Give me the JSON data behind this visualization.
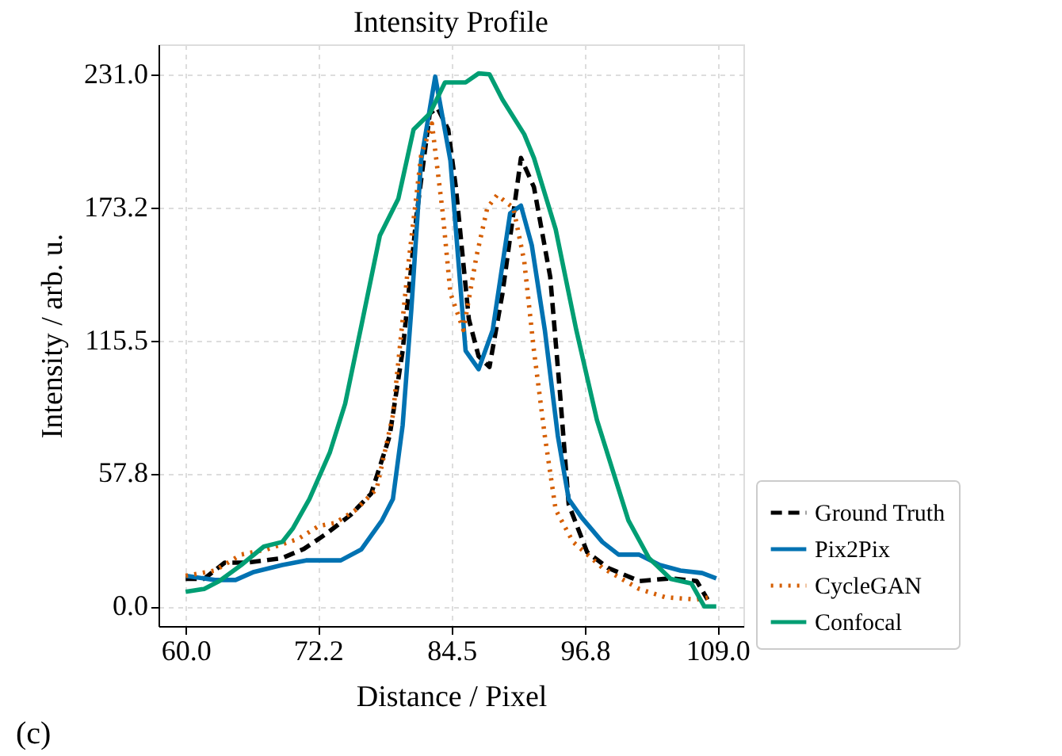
{
  "chart_data": {
    "type": "line",
    "title": "Intensity Profile",
    "xlabel": "Distance / Pixel",
    "ylabel": "Intensity / arb. u.",
    "xlim": [
      57.5,
      111.4
    ],
    "ylim": [
      -8.5,
      244
    ],
    "xticks": [
      {
        "value": 60,
        "label": "60.0"
      },
      {
        "value": 72.2,
        "label": "72.2"
      },
      {
        "value": 84.5,
        "label": "84.5"
      },
      {
        "value": 96.8,
        "label": "96.8"
      },
      {
        "value": 109,
        "label": "109.0"
      }
    ],
    "yticks": [
      {
        "value": 0,
        "label": "0.0"
      },
      {
        "value": 57.8,
        "label": "57.8"
      },
      {
        "value": 115.5,
        "label": "115.5"
      },
      {
        "value": 173.2,
        "label": "173.2"
      },
      {
        "value": 231,
        "label": "231.0"
      }
    ],
    "grid": true,
    "legend": "bottom right",
    "marker": "none",
    "annotations": [
      "(c)"
    ],
    "series": [
      {
        "name": "Ground Truth",
        "color": "#000000",
        "line_style": "dashed",
        "x": [
          60,
          61.7,
          63.6,
          65.6,
          68.9,
          70.9,
          73,
          75.2,
          77.1,
          78.8,
          80,
          81.3,
          82.5,
          83.2,
          84.2,
          84.9,
          86.1,
          87,
          88,
          89.2,
          90.9,
          92.1,
          93.6,
          94.5,
          95.3,
          97,
          98.9,
          101.8,
          104.7,
          107.1,
          108.1
        ],
        "values": [
          12,
          12,
          19,
          19,
          21,
          25,
          31.7,
          39.7,
          49,
          74,
          111,
          170.6,
          214,
          216.5,
          207,
          182,
          124.7,
          108.6,
          104,
          136,
          194.7,
          182,
          143,
          92.5,
          44.3,
          23.6,
          16.8,
          11,
          12.2,
          11,
          3
        ]
      },
      {
        "name": "Pix2Pix",
        "color": "#0072b2",
        "line_style": "solid",
        "x": [
          60,
          62.7,
          64.6,
          66.3,
          68.9,
          71.1,
          74.3,
          76.2,
          78.1,
          79.1,
          80,
          80.8,
          81.7,
          83,
          84.4,
          85.1,
          85.8,
          87,
          88.3,
          89.9,
          90.9,
          91.9,
          93.1,
          94.3,
          95.3,
          96.5,
          98.4,
          99.9,
          101.8,
          103.7,
          105.6,
          107.6,
          108.9
        ],
        "values": [
          13.3,
          11.5,
          11.5,
          15,
          18,
          20,
          20,
          24.8,
          37.4,
          46.6,
          78.7,
          129,
          193.5,
          230,
          193.5,
          152,
          111,
          103,
          120,
          170.6,
          174,
          156.8,
          120,
          74,
          46.6,
          38.6,
          28,
          22.5,
          22.5,
          18,
          15.6,
          14.5,
          12.2
        ]
      },
      {
        "name": "CycleGAN",
        "color": "#d55e00",
        "line_style": "dotted",
        "x": [
          60,
          62.7,
          65.1,
          67.5,
          70.4,
          72.3,
          73.8,
          75.7,
          77.6,
          79.1,
          80.5,
          81.7,
          82.7,
          83.7,
          84.4,
          85.6,
          86.8,
          87.8,
          88.7,
          90.2,
          91.2,
          92.1,
          93.1,
          94.1,
          95.7,
          98.4,
          101.8,
          104.2,
          107.1,
          108.3
        ],
        "values": [
          13.3,
          15.6,
          22.5,
          24.8,
          29.4,
          35,
          36.3,
          42,
          51,
          83,
          147.6,
          195.8,
          209.6,
          170.6,
          136,
          120,
          152,
          173,
          178.6,
          173,
          150,
          111,
          74,
          42,
          28,
          16.8,
          7.6,
          4,
          3,
          4
        ]
      },
      {
        "name": "Confocal",
        "color": "#009e73",
        "line_style": "solid",
        "x": [
          60,
          61.7,
          63.1,
          65.1,
          67.2,
          68.9,
          69.9,
          71.4,
          73.3,
          74.7,
          76.2,
          77.9,
          79.6,
          81,
          82.5,
          83.9,
          85.8,
          87,
          88,
          89.2,
          91.2,
          92.1,
          94.1,
          96,
          97.9,
          100.8,
          102.7,
          104.7,
          106.6,
          107.8,
          108.9
        ],
        "values": [
          6.4,
          7.6,
          11,
          17.9,
          26,
          28,
          34,
          46.6,
          67,
          88,
          122,
          161,
          177,
          207,
          214,
          227.5,
          227.5,
          231.4,
          231,
          220,
          205,
          194.7,
          163.7,
          120,
          81,
          37.4,
          21,
          12,
          10,
          0,
          0
        ]
      }
    ]
  }
}
